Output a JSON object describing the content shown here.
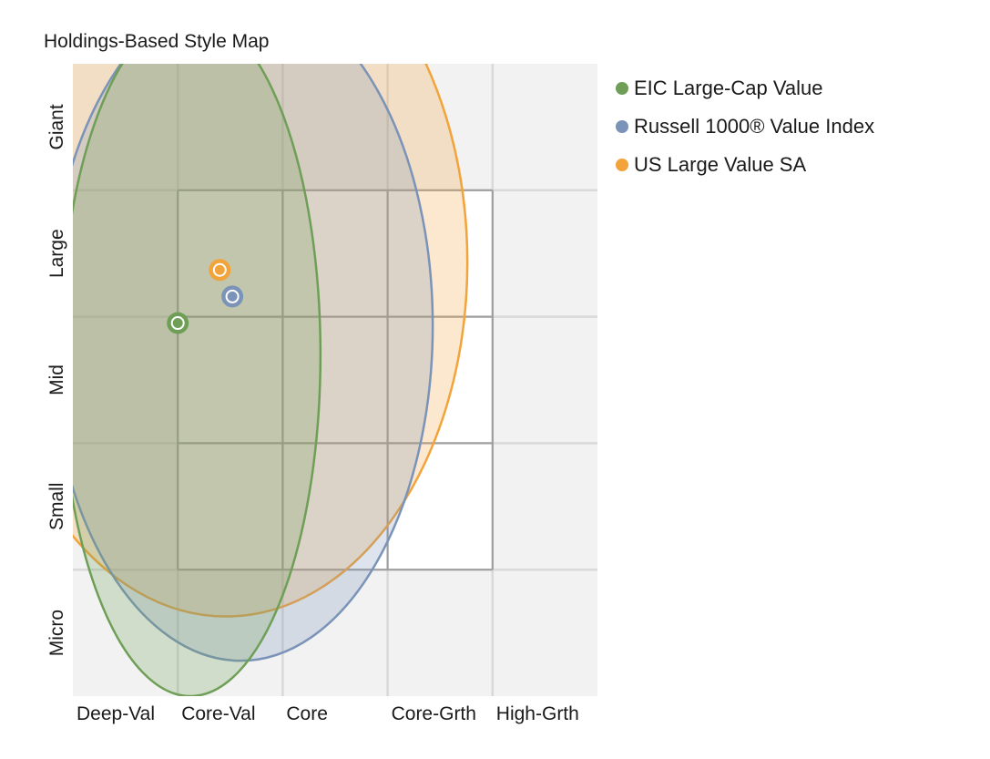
{
  "chart_data": {
    "type": "scatter",
    "title": "Holdings-Based Style Map",
    "x_categories": [
      "Deep-Val",
      "Core-Val",
      "Core",
      "Core-Grth",
      "High-Grth"
    ],
    "y_categories": [
      "Micro",
      "Small",
      "Mid",
      "Large",
      "Giant"
    ],
    "style_box": {
      "x": [
        1,
        4
      ],
      "y": [
        1,
        4
      ]
    },
    "grid": true,
    "legend_position": "right",
    "series": [
      {
        "name": "EIC Large-Cap Value",
        "color": "#6f9f57",
        "centroid": {
          "x": 1.0,
          "y": 2.95
        },
        "zone": {
          "cx": 1.12,
          "cy": 2.7,
          "rx": 1.24,
          "ry": 2.7
        }
      },
      {
        "name": "Russell 1000® Value Index",
        "color": "#7b93b8",
        "centroid": {
          "x": 1.52,
          "y": 3.16
        },
        "zone": {
          "cx": 1.6,
          "cy": 2.93,
          "rx": 1.83,
          "ry": 2.65
        }
      },
      {
        "name": "US Large Value SA",
        "color": "#f2a33a",
        "centroid": {
          "x": 1.4,
          "y": 3.37
        },
        "zone": {
          "cx": 1.46,
          "cy": 3.43,
          "rx": 2.3,
          "ry": 2.8
        }
      }
    ]
  }
}
